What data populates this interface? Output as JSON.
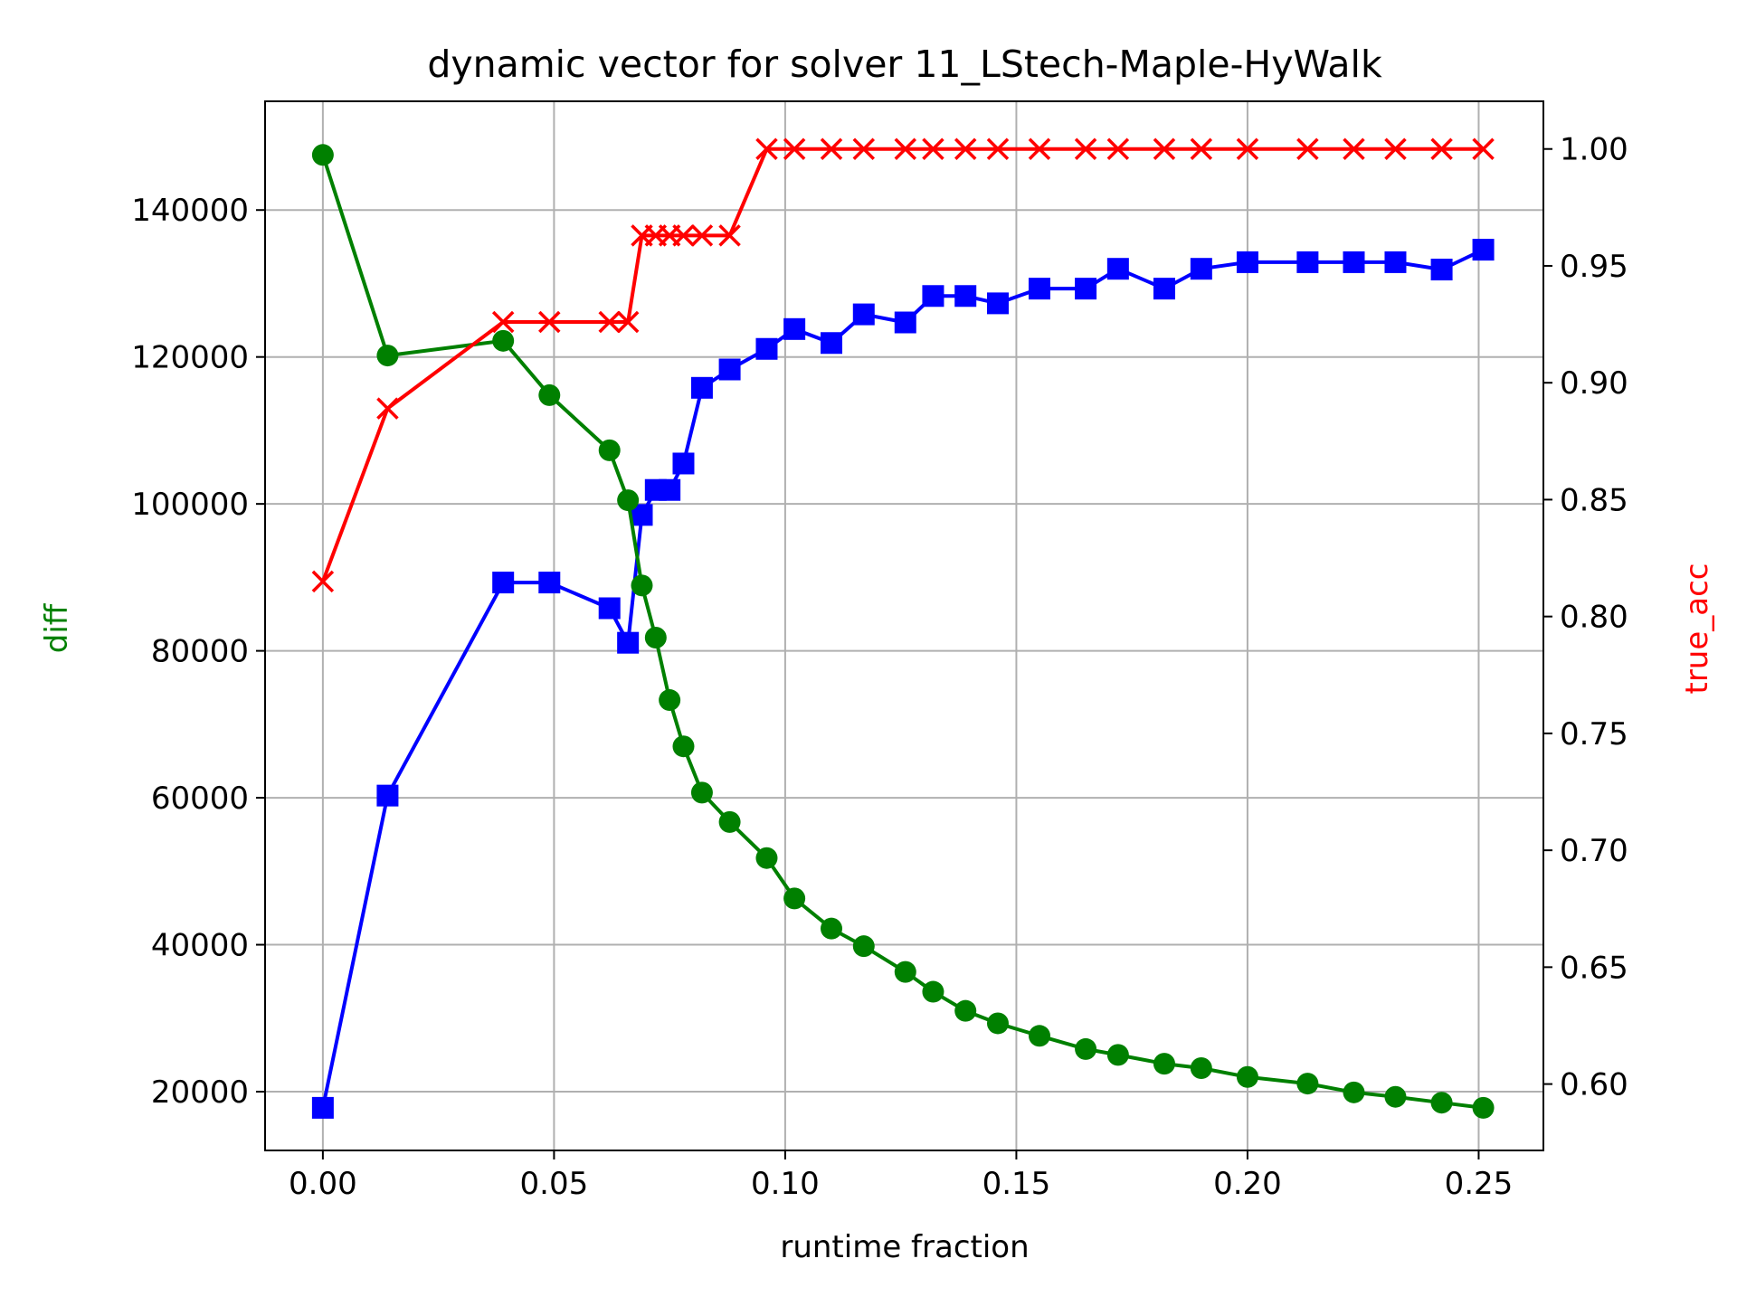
{
  "chart_data": {
    "type": "line",
    "title": "dynamic vector for solver 11_LStech-Maple-HyWalk",
    "xlabel": "runtime fraction",
    "ylabel_left": "diff",
    "ylabel_right": "true_acc",
    "xlim": [
      -0.0125,
      0.264
    ],
    "ylim_left": [
      12000,
      154800
    ],
    "ylim_right": [
      0.5716,
      1.0204
    ],
    "grid": true,
    "x_ticks": [
      0.0,
      0.05,
      0.1,
      0.15,
      0.2,
      0.25
    ],
    "x_tick_labels": [
      "0.00",
      "0.05",
      "0.10",
      "0.15",
      "0.20",
      "0.25"
    ],
    "y_left_ticks": [
      20000,
      40000,
      60000,
      80000,
      100000,
      120000,
      140000
    ],
    "y_left_tick_labels": [
      "20000",
      "40000",
      "60000",
      "80000",
      "100000",
      "120000",
      "140000"
    ],
    "y_right_ticks": [
      0.6,
      0.65,
      0.7,
      0.75,
      0.8,
      0.85,
      0.9,
      0.95,
      1.0
    ],
    "y_right_tick_labels": [
      "0.60",
      "0.65",
      "0.70",
      "0.75",
      "0.80",
      "0.85",
      "0.90",
      "0.95",
      "1.00"
    ],
    "colors": {
      "diff": "#008000",
      "blue_series": "#0000ff",
      "true_acc": "#ff0000"
    },
    "series": [
      {
        "axis": "left",
        "color": "#008000",
        "marker": "circle",
        "x": [
          0.0,
          0.014,
          0.039,
          0.049,
          0.062,
          0.066,
          0.069,
          0.072,
          0.075,
          0.078,
          0.082,
          0.088,
          0.096,
          0.102,
          0.11,
          0.117,
          0.126,
          0.132,
          0.139,
          0.146,
          0.155,
          0.165,
          0.172,
          0.182,
          0.19,
          0.2,
          0.213,
          0.223,
          0.232,
          0.242,
          0.251
        ],
        "values": [
          147500,
          120200,
          122200,
          114800,
          107300,
          100500,
          88900,
          81800,
          73300,
          67000,
          60700,
          56700,
          51800,
          46300,
          42200,
          39800,
          36300,
          33600,
          31000,
          29300,
          27600,
          25800,
          25000,
          23800,
          23200,
          22000,
          21100,
          19900,
          19300,
          18500,
          17800
        ]
      },
      {
        "axis": "left",
        "color": "#0000ff",
        "marker": "square",
        "x": [
          0.0,
          0.014,
          0.039,
          0.049,
          0.062,
          0.066,
          0.069,
          0.072,
          0.075,
          0.078,
          0.082,
          0.088,
          0.096,
          0.102,
          0.11,
          0.117,
          0.126,
          0.132,
          0.139,
          0.146,
          0.155,
          0.165,
          0.172,
          0.182,
          0.19,
          0.2,
          0.213,
          0.223,
          0.232,
          0.242,
          0.251
        ],
        "values": [
          17800,
          60300,
          89300,
          89300,
          85800,
          81100,
          98500,
          101900,
          101900,
          105500,
          115800,
          118300,
          121100,
          123800,
          121900,
          125800,
          124700,
          128300,
          128300,
          127300,
          129300,
          129300,
          132000,
          129300,
          132000,
          132900,
          132900,
          132900,
          132900,
          131900,
          134600
        ]
      },
      {
        "axis": "right",
        "color": "#ff0000",
        "marker": "x",
        "x": [
          0.0,
          0.014,
          0.039,
          0.049,
          0.062,
          0.066,
          0.069,
          0.072,
          0.075,
          0.078,
          0.082,
          0.088,
          0.096,
          0.102,
          0.11,
          0.117,
          0.126,
          0.132,
          0.139,
          0.146,
          0.155,
          0.165,
          0.172,
          0.182,
          0.19,
          0.2,
          0.213,
          0.223,
          0.232,
          0.242,
          0.251
        ],
        "values": [
          0.815,
          0.889,
          0.926,
          0.926,
          0.926,
          0.926,
          0.963,
          0.963,
          0.963,
          0.963,
          0.963,
          0.963,
          1.0,
          1.0,
          1.0,
          1.0,
          1.0,
          1.0,
          1.0,
          1.0,
          1.0,
          1.0,
          1.0,
          1.0,
          1.0,
          1.0,
          1.0,
          1.0,
          1.0,
          1.0,
          1.0
        ]
      }
    ]
  }
}
